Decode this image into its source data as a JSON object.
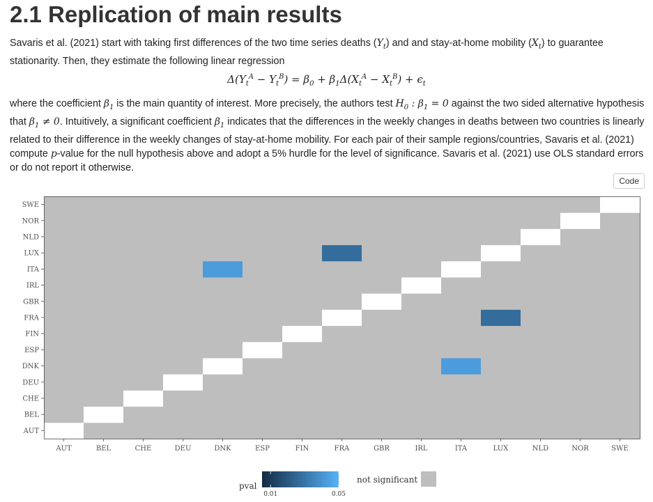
{
  "section": {
    "title": "2.1 Replication of main results"
  },
  "para1": {
    "t1": "Savaris et al. (2021) start with taking first differences of the two time series deaths (",
    "m1": "Y",
    "m1sub": "t",
    "t2": ") and and stay-at-home mobility (",
    "m2": "X",
    "m2sub": "t",
    "t3": ") to guarantee stationarity. Then, they estimate the following linear regression"
  },
  "equation": {
    "text_a": "Δ(Y",
    "text_b": "t",
    "text_c": "A",
    "text_d": " − Y",
    "text_e": "t",
    "text_f": "B",
    "text_g": ") = β",
    "text_h": "0",
    "text_i": " + β",
    "text_j": "1",
    "text_k": "Δ(X",
    "text_l": "t",
    "text_m": "A",
    "text_n": " − X",
    "text_o": "t",
    "text_p": "B",
    "text_q": ") + ϵ",
    "text_r": "t"
  },
  "para2": {
    "t1": "where the coefficient ",
    "m1": "β",
    "m1sub": "1",
    "t2": " is the main quantity of interest. More precisely, the authors test ",
    "m2": "H",
    "m2sub": "0",
    "m2rest": " : β",
    "m2sub2": "1",
    "m2rest2": " = 0",
    "t3": " against the two sided alternative hypothesis that ",
    "m3": "β",
    "m3sub": "1",
    "m3rest": " ≠ 0",
    "t4": ". Intuitively, a significant coefficient ",
    "m4": "β",
    "m4sub": "1",
    "t5": " indicates that the differences in the weekly changes in deaths between two countries is linearly related to their difference in the weekly changes of stay-at-home mobility. For each pair of their sample regions/countries, Savaris et al. (2021) compute ",
    "m5": "p",
    "t6": "-value for the null hypothesis above and adopt a 5% hurdle for the level of significance. Savaris et al. (2021) use OLS standard errors or do not report it otherwise."
  },
  "code_button": {
    "label": "Code"
  },
  "chart_data": {
    "type": "heatmap",
    "x_categories": [
      "AUT",
      "BEL",
      "CHE",
      "DEU",
      "DNK",
      "ESP",
      "FIN",
      "FRA",
      "GBR",
      "IRL",
      "ITA",
      "LUX",
      "NLD",
      "NOR",
      "SWE"
    ],
    "y_categories": [
      "AUT",
      "BEL",
      "CHE",
      "DEU",
      "DNK",
      "ESP",
      "FIN",
      "FRA",
      "GBR",
      "IRL",
      "ITA",
      "LUX",
      "NLD",
      "NOR",
      "SWE"
    ],
    "diagonal_blank": true,
    "significant_cells": [
      {
        "x": "FRA",
        "y": "LUX",
        "pval": 0.027
      },
      {
        "x": "DNK",
        "y": "ITA",
        "pval": 0.043
      },
      {
        "x": "LUX",
        "y": "FRA",
        "pval": 0.027
      },
      {
        "x": "ITA",
        "y": "DNK",
        "pval": 0.043
      }
    ],
    "legend": {
      "title": "pval",
      "range": [
        0.005,
        0.05
      ],
      "tick_values": [
        0.01,
        0.05
      ],
      "tick_labels": [
        "0.01",
        "0.05"
      ],
      "not_significant_label": "not significant"
    },
    "colors": {
      "not_significant": "#bebebe",
      "diagonal": "#ffffff",
      "low": "#132b43",
      "high": "#56b1f7"
    }
  }
}
